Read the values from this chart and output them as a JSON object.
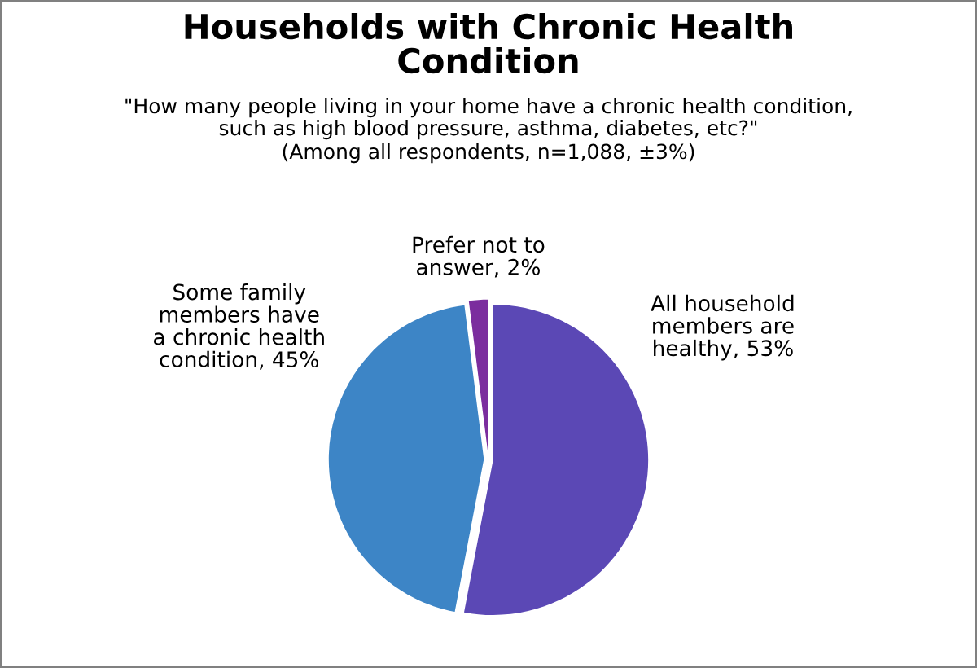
{
  "chart_data": {
    "type": "pie",
    "title": "Households with Chronic Health\nCondition",
    "subtitle": "\"How many people living in your home have a chronic health condition,\nsuch as high blood pressure, asthma, diabetes, etc?\"",
    "annotations": [
      "(Among all respondents, n=1,088, ±3%)"
    ],
    "categories": [
      "All household\nmembers are\nhealthy",
      "Some family\nmembers have\na chronic health\ncondition",
      "Prefer not to\nanswer"
    ],
    "values": [
      53,
      45,
      2
    ],
    "value_labels": [
      "53%",
      "45%",
      "2%"
    ],
    "colors": [
      "#5b48b5",
      "#3d85c6",
      "#7b2d9e"
    ]
  }
}
